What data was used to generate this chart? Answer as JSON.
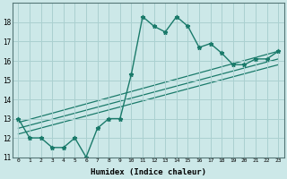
{
  "title": "",
  "xlabel": "Humidex (Indice chaleur)",
  "bg_color": "#cce8e8",
  "grid_color": "#aad0d0",
  "line_color": "#1a7a6a",
  "xlim": [
    -0.5,
    23.5
  ],
  "ylim": [
    11,
    19
  ],
  "xticks": [
    0,
    1,
    2,
    3,
    4,
    5,
    6,
    7,
    8,
    9,
    10,
    11,
    12,
    13,
    14,
    15,
    16,
    17,
    18,
    19,
    20,
    21,
    22,
    23
  ],
  "yticks": [
    11,
    12,
    13,
    14,
    15,
    16,
    17,
    18
  ],
  "series1_x": [
    0,
    1,
    2,
    3,
    4,
    5,
    6,
    7,
    8,
    9,
    10,
    11,
    12,
    13,
    14,
    15,
    16,
    17,
    18,
    19,
    20,
    21,
    22,
    23
  ],
  "series1_y": [
    13.0,
    12.0,
    12.0,
    11.5,
    11.5,
    12.0,
    11.0,
    12.5,
    13.0,
    13.0,
    15.3,
    18.3,
    17.8,
    17.5,
    18.3,
    17.8,
    16.7,
    16.9,
    16.4,
    15.8,
    15.8,
    16.1,
    16.1,
    16.5
  ],
  "line2_x": [
    0,
    23
  ],
  "line2_y": [
    12.2,
    15.8
  ],
  "line3_x": [
    0,
    23
  ],
  "line3_y": [
    12.5,
    16.1
  ],
  "line4_x": [
    0,
    23
  ],
  "line4_y": [
    12.8,
    16.5
  ]
}
